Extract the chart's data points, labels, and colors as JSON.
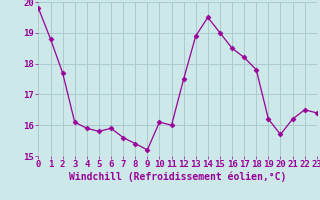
{
  "x": [
    0,
    1,
    2,
    3,
    4,
    5,
    6,
    7,
    8,
    9,
    10,
    11,
    12,
    13,
    14,
    15,
    16,
    17,
    18,
    19,
    20,
    21,
    22,
    23
  ],
  "y": [
    19.8,
    18.8,
    17.7,
    16.1,
    15.9,
    15.8,
    15.9,
    15.6,
    15.4,
    15.2,
    16.1,
    16.0,
    17.5,
    18.9,
    19.5,
    19.0,
    18.5,
    18.2,
    17.8,
    16.2,
    15.7,
    16.2,
    16.5,
    16.4
  ],
  "line_color": "#990099",
  "marker": "D",
  "marker_size": 2.5,
  "bg_color": "#cce8e8",
  "grid_color": "#aacccc",
  "xlabel": "Windchill (Refroidissement éolien,°C)",
  "xlabel_fontsize": 7,
  "tick_fontsize": 6.5,
  "ylim": [
    15,
    20
  ],
  "xlim": [
    0,
    23
  ],
  "yticks": [
    15,
    16,
    17,
    18,
    19,
    20
  ],
  "xticks": [
    0,
    1,
    2,
    3,
    4,
    5,
    6,
    7,
    8,
    9,
    10,
    11,
    12,
    13,
    14,
    15,
    16,
    17,
    18,
    19,
    20,
    21,
    22,
    23
  ]
}
